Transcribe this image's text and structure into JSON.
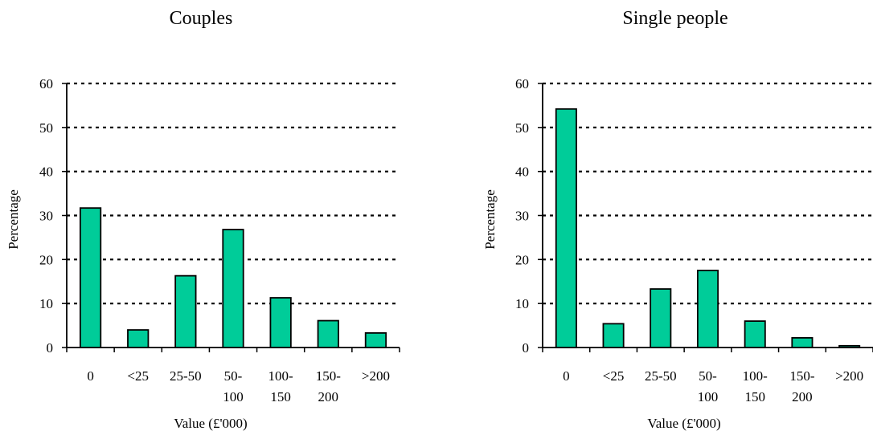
{
  "chart_data": [
    {
      "type": "bar",
      "title": "Couples",
      "xlabel": "Value (£'000)",
      "ylabel": "Percentage",
      "ylim": [
        0,
        60
      ],
      "yticks": [
        0,
        10,
        20,
        30,
        40,
        50,
        60
      ],
      "grid": "dotted horizontal",
      "categories": [
        [
          "0"
        ],
        [
          "<25"
        ],
        [
          "25-50"
        ],
        [
          "50-",
          "100"
        ],
        [
          "100-",
          "150"
        ],
        [
          "150-",
          "200"
        ],
        [
          ">200"
        ]
      ],
      "values": [
        31.7,
        4.0,
        16.3,
        26.8,
        11.3,
        6.1,
        3.3
      ]
    },
    {
      "type": "bar",
      "title": "Single people",
      "xlabel": "Value (£'000)",
      "ylabel": "Percentage",
      "ylim": [
        0,
        60
      ],
      "yticks": [
        0,
        10,
        20,
        30,
        40,
        50,
        60
      ],
      "grid": "dotted horizontal",
      "categories": [
        [
          "0"
        ],
        [
          "<25"
        ],
        [
          "25-50"
        ],
        [
          "50-",
          "100"
        ],
        [
          "100-",
          "150"
        ],
        [
          "150-",
          "200"
        ],
        [
          ">200"
        ]
      ],
      "values": [
        54.2,
        5.4,
        13.3,
        17.5,
        6.0,
        2.2,
        0.4
      ]
    }
  ],
  "colors": {
    "bar": "#00cc99",
    "stroke": "#000000"
  }
}
